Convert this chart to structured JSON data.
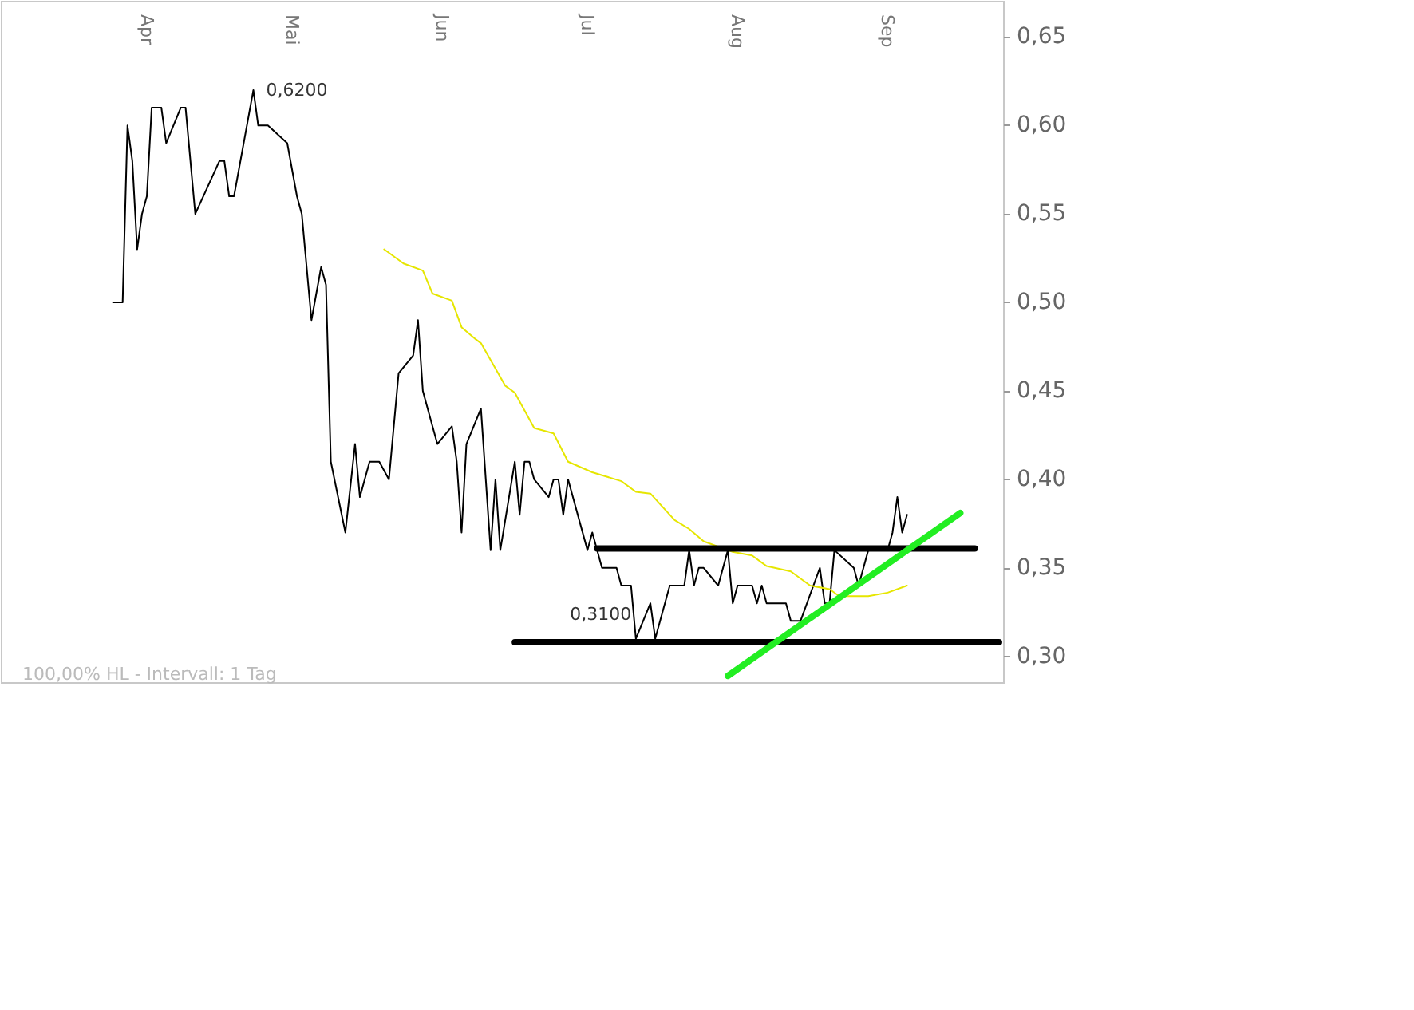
{
  "chart_data": {
    "type": "line",
    "xlim": [
      "--03-02",
      "--09-25"
    ],
    "ylim": [
      0.285,
      0.67
    ],
    "xticks": [
      {
        "value": "--04-01",
        "label": "Apr"
      },
      {
        "value": "--05-01",
        "label": "Mai"
      },
      {
        "value": "--06-01",
        "label": "Jun"
      },
      {
        "value": "--07-01",
        "label": "Jul"
      },
      {
        "value": "--08-01",
        "label": "Aug"
      },
      {
        "value": "--09-01",
        "label": "Sep"
      }
    ],
    "yticks": [
      {
        "value": 0.3,
        "label": "0,30"
      },
      {
        "value": 0.35,
        "label": "0,35"
      },
      {
        "value": 0.4,
        "label": "0,40"
      },
      {
        "value": 0.45,
        "label": "0,45"
      },
      {
        "value": 0.5,
        "label": "0,50"
      },
      {
        "value": 0.55,
        "label": "0,55"
      },
      {
        "value": 0.6,
        "label": "0,60"
      },
      {
        "value": 0.65,
        "label": "0,65"
      }
    ],
    "grid": false,
    "marker": "none",
    "line_style": "solid",
    "series": [
      {
        "color": "#000000",
        "x": [
          "--03-25",
          "--03-27",
          "--03-28",
          "--03-29",
          "--03-30",
          "--03-31",
          "--04-01",
          "--04-02",
          "--04-04",
          "--04-05",
          "--04-08",
          "--04-09",
          "--04-11",
          "--04-16",
          "--04-17",
          "--04-18",
          "--04-19",
          "--04-23",
          "--04-24",
          "--04-26",
          "--04-30",
          "--05-02",
          "--05-03",
          "--05-05",
          "--05-07",
          "--05-08",
          "--05-09",
          "--05-12",
          "--05-14",
          "--05-15",
          "--05-17",
          "--05-19",
          "--05-21",
          "--05-23",
          "--05-26",
          "--05-27",
          "--05-28",
          "--05-29",
          "--05-31",
          "--06-03",
          "--06-04",
          "--06-05",
          "--06-06",
          "--06-09",
          "--06-10",
          "--06-11",
          "--06-12",
          "--06-13",
          "--06-16",
          "--06-17",
          "--06-18",
          "--06-19",
          "--06-20",
          "--06-23",
          "--06-24",
          "--06-25",
          "--06-26",
          "--06-27",
          "--07-01",
          "--07-02",
          "--07-04",
          "--07-07",
          "--07-08",
          "--07-10",
          "--07-11",
          "--07-14",
          "--07-15",
          "--07-18",
          "--07-21",
          "--07-22",
          "--07-23",
          "--07-24",
          "--07-25",
          "--07-28",
          "--07-30",
          "--07-31",
          "--08-01",
          "--08-04",
          "--08-05",
          "--08-06",
          "--08-07",
          "--08-11",
          "--08-12",
          "--08-14",
          "--08-18",
          "--08-19",
          "--08-20",
          "--08-21",
          "--08-25",
          "--08-26",
          "--08-28",
          "--09-01",
          "--09-02",
          "--09-03",
          "--09-04",
          "--09-05"
        ],
        "values": [
          0.5,
          0.5,
          0.6,
          0.58,
          0.53,
          0.55,
          0.56,
          0.61,
          0.61,
          0.59,
          0.61,
          0.61,
          0.55,
          0.58,
          0.58,
          0.56,
          0.56,
          0.62,
          0.6,
          0.6,
          0.59,
          0.56,
          0.55,
          0.49,
          0.52,
          0.51,
          0.41,
          0.37,
          0.42,
          0.39,
          0.41,
          0.41,
          0.4,
          0.46,
          0.47,
          0.49,
          0.45,
          0.44,
          0.42,
          0.43,
          0.41,
          0.37,
          0.42,
          0.44,
          0.4,
          0.36,
          0.4,
          0.36,
          0.41,
          0.38,
          0.41,
          0.41,
          0.4,
          0.39,
          0.4,
          0.4,
          0.38,
          0.4,
          0.36,
          0.37,
          0.35,
          0.35,
          0.34,
          0.34,
          0.31,
          0.33,
          0.31,
          0.34,
          0.34,
          0.36,
          0.34,
          0.35,
          0.35,
          0.34,
          0.36,
          0.33,
          0.34,
          0.34,
          0.33,
          0.34,
          0.33,
          0.33,
          0.32,
          0.32,
          0.35,
          0.33,
          0.33,
          0.36,
          0.35,
          0.34,
          0.36,
          0.36,
          0.37,
          0.39,
          0.37,
          0.38
        ]
      },
      {
        "color": "#e6e600",
        "x": [
          "--05-20",
          "--05-24",
          "--05-28",
          "--05-30",
          "--06-03",
          "--06-05",
          "--06-08",
          "--06-09",
          "--06-14",
          "--06-16",
          "--06-20",
          "--06-24",
          "--06-27",
          "--07-02",
          "--07-08",
          "--07-11",
          "--07-14",
          "--07-19",
          "--07-22",
          "--07-25",
          "--07-31",
          "--08-04",
          "--08-07",
          "--08-12",
          "--08-16",
          "--08-20",
          "--08-22",
          "--08-28",
          "--09-01",
          "--09-05"
        ],
        "values": [
          0.53,
          0.522,
          0.518,
          0.505,
          0.501,
          0.486,
          0.479,
          0.477,
          0.453,
          0.449,
          0.429,
          0.426,
          0.41,
          0.404,
          0.399,
          0.393,
          0.392,
          0.377,
          0.372,
          0.365,
          0.359,
          0.357,
          0.351,
          0.348,
          0.34,
          0.338,
          0.334,
          0.334,
          0.336,
          0.34
        ]
      },
      {
        "color": "#000000",
        "x": [
          "--07-03",
          "--09-19"
        ],
        "values": [
          0.361,
          0.361
        ]
      },
      {
        "color": "#000000",
        "x": [
          "--06-16",
          "--09-24"
        ],
        "values": [
          0.308,
          0.308
        ]
      },
      {
        "color": "#22ee22",
        "x": [
          "--07-30",
          "--09-16"
        ],
        "values": [
          0.289,
          0.381
        ]
      }
    ],
    "annotations": [
      {
        "text": "0,6200",
        "x": "--04-23",
        "y": 0.62
      },
      {
        "text": "0,3100",
        "x": "--07-11",
        "y": 0.31
      },
      "100,00% HL - Intervall: 1 Tag"
    ]
  }
}
